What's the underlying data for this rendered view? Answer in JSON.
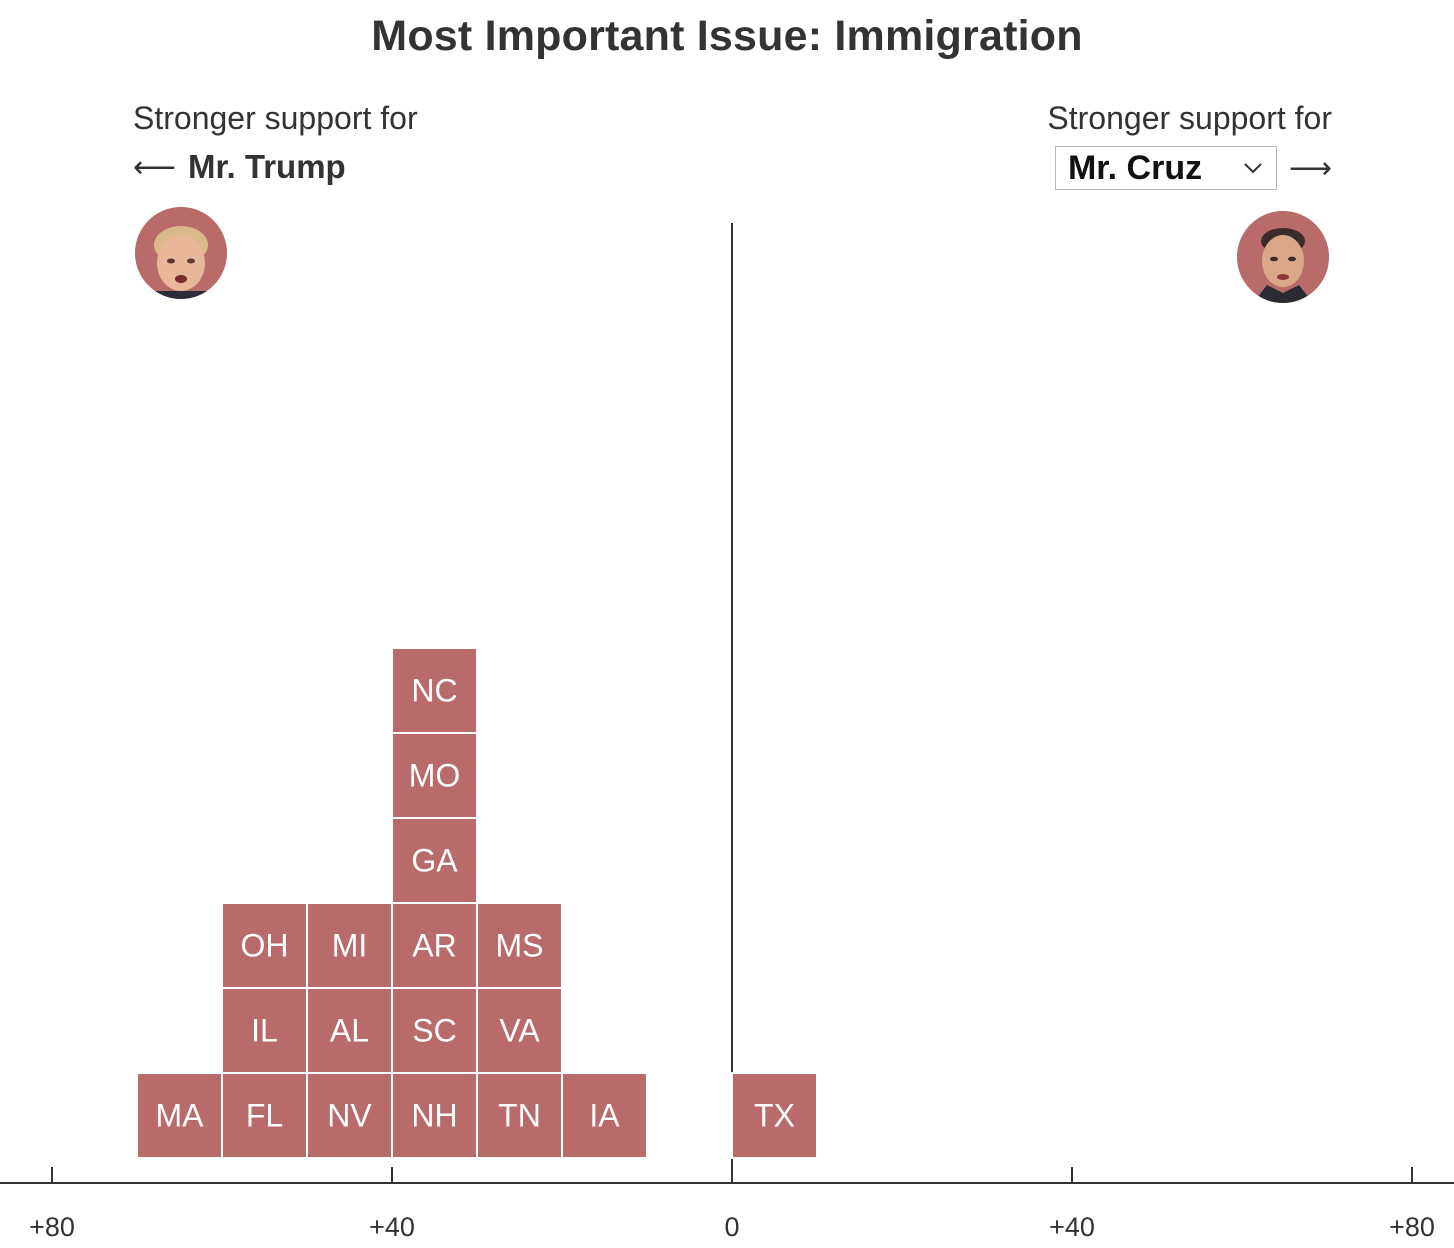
{
  "title": "Most Important Issue: Immigration",
  "left_side": {
    "caption": "Stronger support for",
    "arrow": "⟵",
    "candidate": "Mr. Trump",
    "avatar_icon": "trump-portrait-icon"
  },
  "right_side": {
    "caption": "Stronger support for",
    "arrow": "⟶",
    "selected_candidate": "Mr. Cruz",
    "avatar_icon": "cruz-portrait-icon"
  },
  "colors": {
    "tile": "#b96b6a",
    "axis": "#333333",
    "tile_border": "#ffffff"
  },
  "chart_data": {
    "type": "bar",
    "subtype": "stacked-tile-histogram",
    "title": "Most Important Issue: Immigration",
    "x_ticks": [
      "+80",
      "+40",
      "0",
      "+40",
      "+80"
    ],
    "x_tick_values": [
      -80,
      -40,
      0,
      40,
      80
    ],
    "xlim": [
      -80,
      80
    ],
    "bin_width": 10,
    "bins": [
      {
        "center": -65,
        "states": [
          "MA"
        ]
      },
      {
        "center": -55,
        "states": [
          "FL",
          "IL",
          "OH"
        ]
      },
      {
        "center": -45,
        "states": [
          "NV",
          "AL",
          "MI"
        ]
      },
      {
        "center": -35,
        "states": [
          "NH",
          "SC",
          "AR",
          "GA",
          "MO",
          "NC"
        ]
      },
      {
        "center": -25,
        "states": [
          "TN",
          "VA",
          "MS"
        ]
      },
      {
        "center": -15,
        "states": [
          "IA"
        ]
      },
      {
        "center": 5,
        "states": [
          "TX"
        ]
      }
    ]
  }
}
